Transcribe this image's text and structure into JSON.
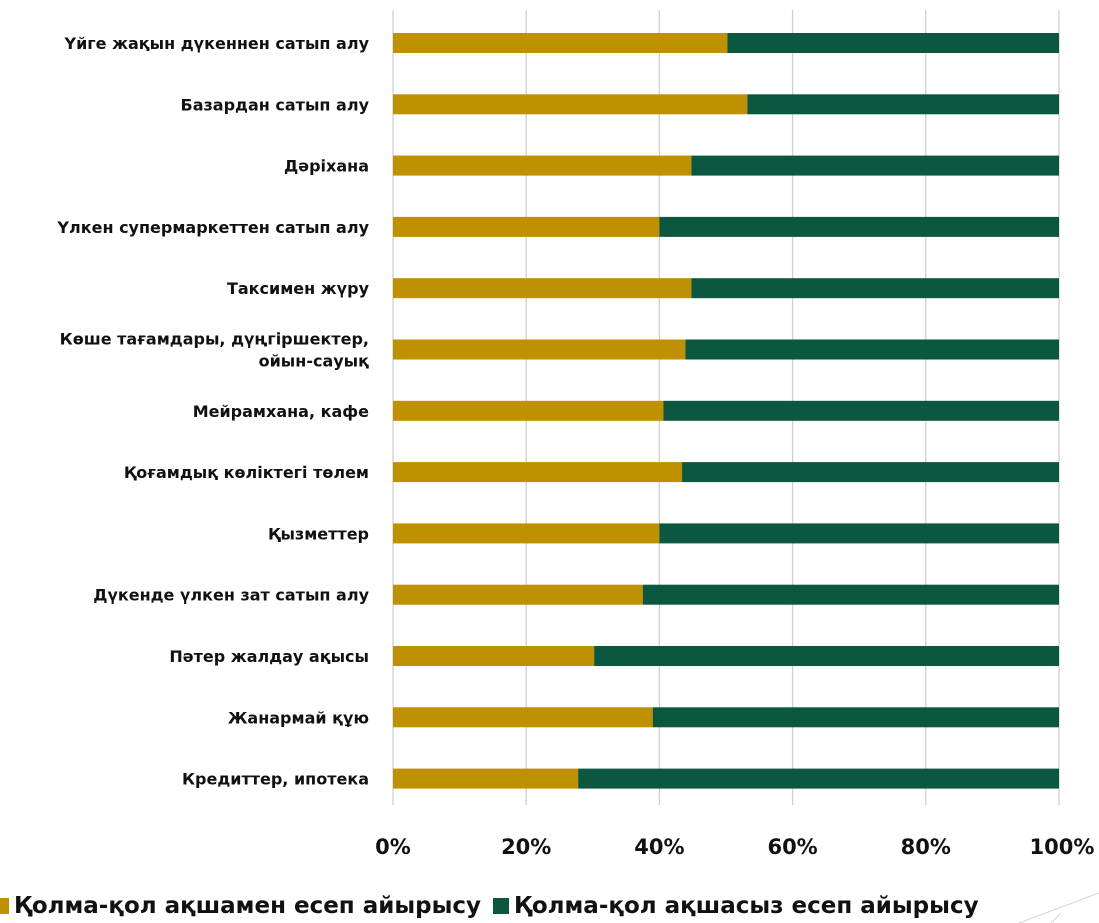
{
  "chart_data": {
    "type": "bar",
    "orientation": "horizontal",
    "stacked": "percent",
    "categories": [
      "Үйге жақын дүкеннен сатып алу",
      "Базардан сатып алу",
      "Дәріхана",
      "Үлкен супермаркеттен сатып алу",
      "Таксимен жүру",
      "Көше тағамдары, дүңгіршектер, ойын-сауық",
      "Мейрамхана, кафе",
      "Қоғамдық көліктегі төлем",
      "Қызметтер",
      "Дүкенде үлкен зат сатып алу",
      "Пәтер жалдау ақысы",
      "Жанармай құю",
      "Кредиттер, ипотека"
    ],
    "category_lines": [
      [
        "Үйге жақын дүкеннен сатып алу"
      ],
      [
        "Базардан сатып алу"
      ],
      [
        "Дәріхана"
      ],
      [
        "Үлкен супермаркеттен сатып алу"
      ],
      [
        "Таксимен жүру"
      ],
      [
        "Көше тағамдары, дүңгіршектер,",
        "ойын-сауық"
      ],
      [
        "Мейрамхана, кафе"
      ],
      [
        "Қоғамдық көліктегі төлем"
      ],
      [
        "Қызметтер"
      ],
      [
        "Дүкенде үлкен зат сатып алу"
      ],
      [
        "Пәтер жалдау ақысы"
      ],
      [
        "Жанармай құю"
      ],
      [
        "Кредиттер, ипотека"
      ]
    ],
    "series": [
      {
        "name": "Қолма-қол ақшамен есеп айырысу",
        "color": "#bf9000",
        "values": [
          50.2,
          53.2,
          44.8,
          40.0,
          44.8,
          43.9,
          40.6,
          43.4,
          40.0,
          37.5,
          30.2,
          39.0,
          27.8
        ]
      },
      {
        "name": "Қолма-қол ақшасыз есеп айырысу",
        "color": "#0b5740",
        "values": [
          49.8,
          46.8,
          55.2,
          60.0,
          55.2,
          56.1,
          59.4,
          56.6,
          60.0,
          62.5,
          69.8,
          61.0,
          72.2
        ]
      }
    ],
    "x_ticks": [
      "0%",
      "20%",
      "40%",
      "60%",
      "80%",
      "100%"
    ],
    "xlim": [
      0,
      100
    ],
    "grid": true,
    "legend_position": "bottom"
  }
}
